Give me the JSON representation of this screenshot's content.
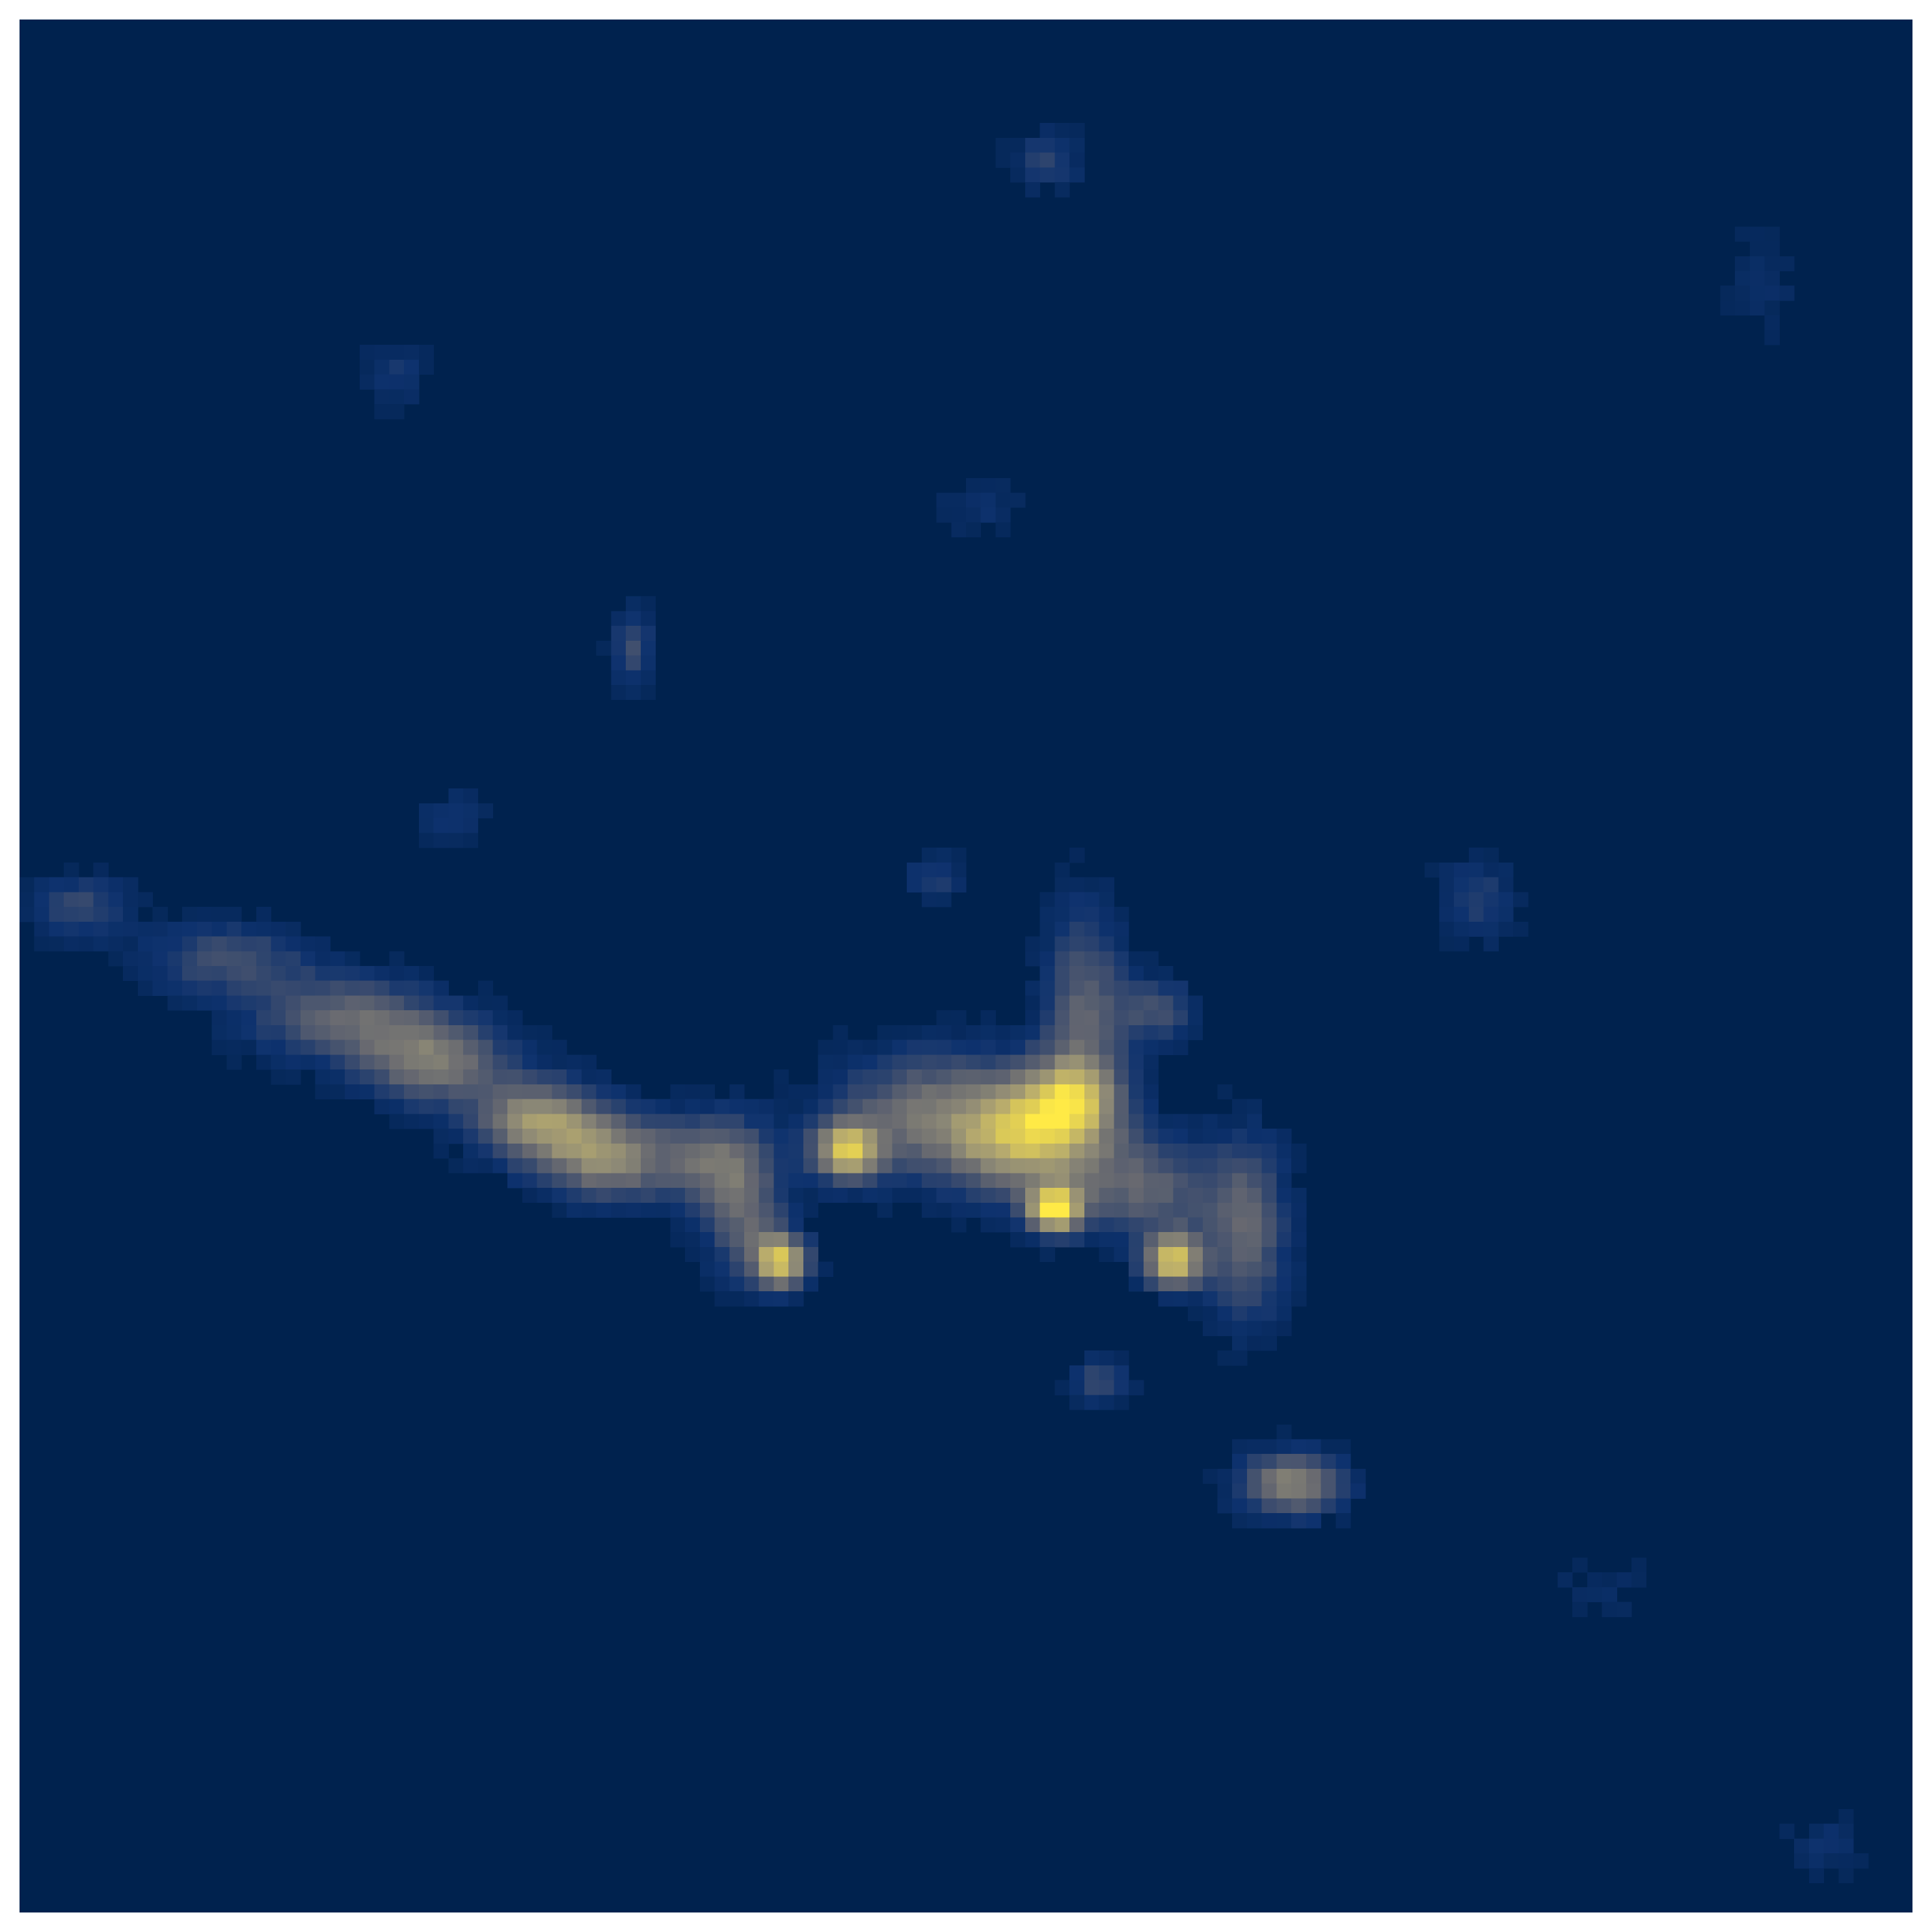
{
  "chart_data": {
    "type": "heatmap",
    "colormap": "cividis",
    "grid": false,
    "legend": "none",
    "xlim": [
      0,
      128
    ],
    "ylim": [
      0,
      128
    ],
    "background_color": "#00224e",
    "blobs": [
      {
        "x": 4,
        "y": 60,
        "sx": 2.5,
        "sy": 1.5,
        "value": 0.28
      },
      {
        "x": 14,
        "y": 63.5,
        "sx": 4.0,
        "sy": 1.8,
        "value": 0.3
      },
      {
        "x": 22,
        "y": 67.5,
        "sx": 4.5,
        "sy": 2.0,
        "value": 0.42
      },
      {
        "x": 28,
        "y": 70.5,
        "sx": 3.5,
        "sy": 2.0,
        "value": 0.5
      },
      {
        "x": 35,
        "y": 74.5,
        "sx": 3.0,
        "sy": 2.0,
        "value": 0.62
      },
      {
        "x": 40,
        "y": 77,
        "sx": 3.0,
        "sy": 2.0,
        "value": 0.58
      },
      {
        "x": 47,
        "y": 77,
        "sx": 2.5,
        "sy": 2.2,
        "value": 0.4
      },
      {
        "x": 49,
        "y": 81,
        "sx": 2.0,
        "sy": 3.0,
        "value": 0.38
      },
      {
        "x": 51.5,
        "y": 84,
        "sx": 1.3,
        "sy": 1.3,
        "value": 0.78
      },
      {
        "x": 56,
        "y": 76.5,
        "sx": 1.6,
        "sy": 1.4,
        "value": 0.75
      },
      {
        "x": 62,
        "y": 74,
        "sx": 5.0,
        "sy": 3.0,
        "value": 0.48
      },
      {
        "x": 68,
        "y": 76,
        "sx": 3.5,
        "sy": 2.5,
        "value": 0.58
      },
      {
        "x": 71,
        "y": 73,
        "sx": 2.5,
        "sy": 2.0,
        "value": 0.55
      },
      {
        "x": 72,
        "y": 67,
        "sx": 2.0,
        "sy": 5.0,
        "value": 0.4
      },
      {
        "x": 77,
        "y": 67,
        "sx": 2.0,
        "sy": 1.5,
        "value": 0.3
      },
      {
        "x": 70,
        "y": 80.5,
        "sx": 1.3,
        "sy": 1.1,
        "value": 0.9
      },
      {
        "x": 78,
        "y": 84,
        "sx": 1.4,
        "sy": 1.3,
        "value": 0.82
      },
      {
        "x": 76,
        "y": 79,
        "sx": 3.5,
        "sy": 2.5,
        "value": 0.4
      },
      {
        "x": 83,
        "y": 82,
        "sx": 2.0,
        "sy": 4.5,
        "value": 0.4
      },
      {
        "x": 86,
        "y": 99,
        "sx": 2.5,
        "sy": 1.5,
        "value": 0.58
      },
      {
        "x": 73,
        "y": 92,
        "sx": 1.5,
        "sy": 1.2,
        "value": 0.26
      },
      {
        "x": 62,
        "y": 58,
        "sx": 1.5,
        "sy": 1.2,
        "value": 0.2
      },
      {
        "x": 98.5,
        "y": 59.5,
        "sx": 2.0,
        "sy": 2.0,
        "value": 0.22
      },
      {
        "x": 41.5,
        "y": 42.5,
        "sx": 1.0,
        "sy": 1.8,
        "value": 0.3
      },
      {
        "x": 29.5,
        "y": 54,
        "sx": 1.7,
        "sy": 1.3,
        "value": 0.18
      },
      {
        "x": 25.5,
        "y": 24,
        "sx": 1.6,
        "sy": 1.6,
        "value": 0.17
      },
      {
        "x": 69.5,
        "y": 9.5,
        "sx": 1.8,
        "sy": 1.4,
        "value": 0.22
      },
      {
        "x": 65,
        "y": 33,
        "sx": 2.2,
        "sy": 1.5,
        "value": 0.12
      },
      {
        "x": 118,
        "y": 18,
        "sx": 2.0,
        "sy": 3.0,
        "value": 0.1
      },
      {
        "x": 107,
        "y": 106,
        "sx": 2.5,
        "sy": 2.0,
        "value": 0.1
      },
      {
        "x": 122,
        "y": 123.5,
        "sx": 2.0,
        "sy": 1.5,
        "value": 0.14
      }
    ]
  }
}
